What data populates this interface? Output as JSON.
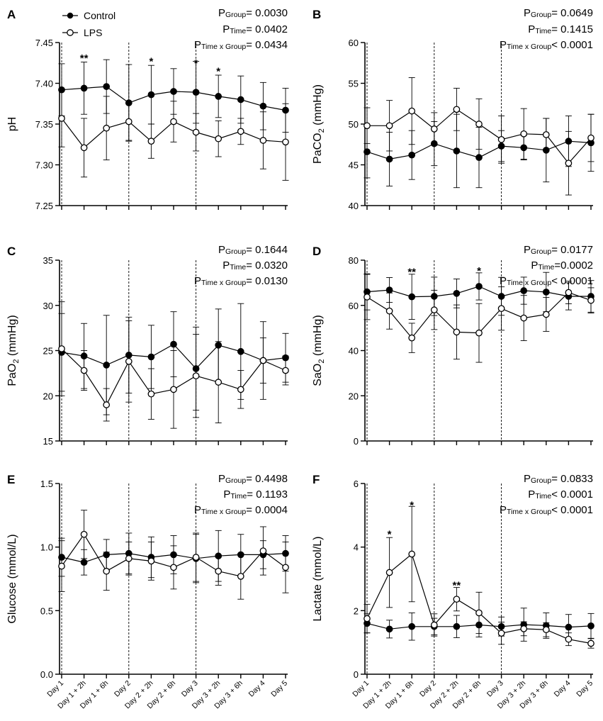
{
  "legend": {
    "control": "Control",
    "lps": "LPS"
  },
  "chart_data": [
    {
      "panel": "A",
      "type": "line",
      "ylabel": "pH",
      "ylabel_sub": "",
      "ylim": [
        7.25,
        7.45
      ],
      "yticks": [
        "7.25",
        "7.30",
        "7.35",
        "7.40",
        "7.45"
      ],
      "categories": [
        "Day 1",
        "Day 1 + 2h",
        "Day 1 + 6h",
        "Day 2",
        "Day 2 + 2h",
        "Day 2 + 6h",
        "Day 3",
        "Day 3 + 2h",
        "Day 3 + 6h",
        "Day 4",
        "Day 5"
      ],
      "vlines": [
        0,
        3,
        6
      ],
      "series": [
        {
          "name": "Control",
          "values": [
            7.392,
            7.394,
            7.396,
            7.376,
            7.386,
            7.39,
            7.389,
            7.384,
            7.38,
            7.372,
            7.367
          ],
          "errors": [
            0.032,
            0.032,
            0.033,
            0.047,
            0.036,
            0.028,
            0.038,
            0.026,
            0.029,
            0.029,
            0.027
          ]
        },
        {
          "name": "LPS",
          "values": [
            7.357,
            7.321,
            7.345,
            7.353,
            7.329,
            7.353,
            7.34,
            7.332,
            7.341,
            7.33,
            7.328
          ],
          "errors": [
            0.035,
            0.036,
            0.039,
            0.023,
            0.021,
            0.025,
            0.023,
            0.022,
            0.016,
            0.035,
            0.047
          ]
        }
      ],
      "stars": [
        {
          "x": 1,
          "label": "**",
          "v": 7.43
        },
        {
          "x": 4,
          "label": "*",
          "v": 7.426
        },
        {
          "x": 6,
          "label": "*",
          "v": 7.424
        },
        {
          "x": 7,
          "label": "*",
          "v": 7.414
        }
      ],
      "stats": [
        {
          "sub": "Group",
          "text": "= 0.0030"
        },
        {
          "sub": "Time",
          "text": "= 0.0402"
        },
        {
          "sub": "Time x Group",
          "text": "= 0.0434"
        }
      ]
    },
    {
      "panel": "B",
      "type": "line",
      "ylabel": "PaCO",
      "ylabel_sub": "2",
      "ylabel_unit": " (mmHg)",
      "ylim": [
        40,
        60
      ],
      "yticks": [
        "40",
        "45",
        "50",
        "55",
        "60"
      ],
      "categories": [
        "Day 1",
        "Day 1 + 2h",
        "Day 1 + 6h",
        "Day 2",
        "Day 2 + 2h",
        "Day 2 + 6h",
        "Day 3",
        "Day 3 + 2h",
        "Day 3 + 6h",
        "Day 4",
        "Day 5"
      ],
      "vlines": [
        0,
        3,
        6
      ],
      "series": [
        {
          "name": "Control",
          "values": [
            46.6,
            45.7,
            46.2,
            47.6,
            46.7,
            45.9,
            47.3,
            47.1,
            46.8,
            47.9,
            47.7
          ],
          "errors": [
            3.2,
            3.3,
            3.0,
            2.7,
            4.5,
            3.7,
            1.9,
            1.5,
            3.9,
            3.1,
            3.5
          ]
        },
        {
          "name": "LPS",
          "values": [
            49.8,
            49.8,
            51.6,
            49.4,
            51.8,
            50.0,
            48.1,
            48.8,
            48.7,
            45.2,
            48.3
          ],
          "errors": [
            2.2,
            3.1,
            4.1,
            2.0,
            2.6,
            3.1,
            2.9,
            3.1,
            2.0,
            3.9,
            2.9
          ]
        }
      ],
      "stars": [],
      "stats": [
        {
          "sub": "Group",
          "text": "= 0.0649"
        },
        {
          "sub": "Time",
          "text": "= 0.1415"
        },
        {
          "sub": "Time x Group",
          "text": "< 0.0001"
        }
      ]
    },
    {
      "panel": "C",
      "type": "line",
      "ylabel": "PaO",
      "ylabel_sub": "2",
      "ylabel_unit": " (mmHg)",
      "ylim": [
        15,
        35
      ],
      "yticks": [
        "15",
        "20",
        "25",
        "30",
        "35"
      ],
      "categories": [
        "Day 1",
        "Day 1 + 2h",
        "Day 1 + 6h",
        "Day 2",
        "Day 2 + 2h",
        "Day 2 + 6h",
        "Day 3",
        "Day 3 + 2h",
        "Day 3 + 6h",
        "Day 4",
        "Day 5"
      ],
      "vlines": [
        0,
        3,
        6
      ],
      "series": [
        {
          "name": "Control",
          "values": [
            24.8,
            24.4,
            23.4,
            24.5,
            24.3,
            25.7,
            23.0,
            25.6,
            24.9,
            23.9,
            24.2
          ],
          "errors": [
            4.3,
            3.6,
            5.5,
            4.2,
            3.5,
            3.6,
            4.6,
            4.0,
            5.3,
            4.3,
            2.7
          ]
        },
        {
          "name": "LPS",
          "values": [
            25.2,
            22.8,
            19.0,
            23.8,
            20.2,
            20.7,
            22.2,
            21.5,
            20.7,
            23.9,
            22.8
          ],
          "errors": [
            5.2,
            2.2,
            1.8,
            4.5,
            2.8,
            4.3,
            4.6,
            4.5,
            2.1,
            2.5,
            1.6
          ]
        }
      ],
      "stars": [],
      "stats": [
        {
          "sub": "Group",
          "text": "= 0.1644"
        },
        {
          "sub": "Time",
          "text": "= 0.0320"
        },
        {
          "sub": "Time x Group",
          "text": "= 0.0130"
        }
      ]
    },
    {
      "panel": "D",
      "type": "line",
      "ylabel": "SaO",
      "ylabel_sub": "2",
      "ylabel_unit": " (mmHg)",
      "ylim": [
        0,
        80
      ],
      "yticks": [
        "0",
        "20",
        "40",
        "60",
        "80"
      ],
      "categories": [
        "Day 1",
        "Day 1 + 2h",
        "Day 1 + 6h",
        "Day 2",
        "Day 2 + 2h",
        "Day 2 + 6h",
        "Day 3",
        "Day 3 + 2h",
        "Day 3 + 6h",
        "Day 4",
        "Day 5"
      ],
      "vlines": [
        0,
        3,
        6
      ],
      "series": [
        {
          "name": "Control",
          "values": [
            66,
            66.8,
            63.8,
            64,
            65.3,
            68.4,
            64,
            66.5,
            65.9,
            64,
            64
          ],
          "errors": [
            8,
            5.5,
            10,
            8.5,
            6.4,
            6,
            8.4,
            6,
            8.7,
            6,
            7
          ]
        },
        {
          "name": "LPS",
          "values": [
            63.7,
            57.5,
            45.6,
            58,
            48.2,
            47.8,
            58.6,
            54.4,
            56,
            65.7,
            62.2
          ],
          "errors": [
            10,
            8,
            6.5,
            8.7,
            12,
            13,
            9.6,
            10,
            7.5,
            5,
            5.6
          ]
        }
      ],
      "stars": [
        {
          "x": 2,
          "label": "**",
          "v": 74.5
        },
        {
          "x": 5,
          "label": "*",
          "v": 75.0
        }
      ],
      "stats": [
        {
          "sub": "Group",
          "text": "= 0.0177"
        },
        {
          "sub": "Time",
          "text": "=0.0002"
        },
        {
          "sub": "Time x Group",
          "text": "< 0.0001"
        }
      ]
    },
    {
      "panel": "E",
      "type": "line",
      "ylabel": "Glucose (mmol/L)",
      "ylabel_sub": "",
      "ylim": [
        0,
        1.5
      ],
      "yticks": [
        "0.0",
        "0.5",
        "1.0",
        "1.5"
      ],
      "categories": [
        "Day 1",
        "Day 1 + 2h",
        "Day 1 + 6h",
        "Day 2",
        "Day 2 + 2h",
        "Day 2 + 6h",
        "Day 3",
        "Day 3 + 2h",
        "Day 3 + 6h",
        "Day 4",
        "Day 5"
      ],
      "vlines": [
        0,
        3,
        6
      ],
      "series": [
        {
          "name": "Control",
          "values": [
            0.92,
            0.88,
            0.94,
            0.95,
            0.92,
            0.94,
            0.91,
            0.93,
            0.94,
            0.94,
            0.95
          ],
          "errors": [
            0.15,
            0.1,
            0.12,
            0.16,
            0.16,
            0.15,
            0.19,
            0.2,
            0.16,
            0.11,
            0.14
          ]
        },
        {
          "name": "LPS",
          "values": [
            0.85,
            1.1,
            0.81,
            0.91,
            0.89,
            0.84,
            0.92,
            0.81,
            0.77,
            0.97,
            0.84
          ],
          "errors": [
            0.2,
            0.19,
            0.15,
            0.13,
            0.15,
            0.17,
            0.19,
            0.11,
            0.18,
            0.19,
            0.2
          ]
        }
      ],
      "stars": [],
      "stats": [
        {
          "sub": "Group",
          "text": "= 0.4498"
        },
        {
          "sub": "Time",
          "text": "= 0.1193"
        },
        {
          "sub": "Time x Group",
          "text": "= 0.0004"
        }
      ]
    },
    {
      "panel": "F",
      "type": "line",
      "ylabel": "Lactate (mmol/L)",
      "ylabel_sub": "",
      "ylim": [
        0,
        6
      ],
      "yticks": [
        "0",
        "2",
        "4",
        "6"
      ],
      "categories": [
        "Day 1",
        "Day 1 + 2h",
        "Day 1 + 6h",
        "Day 2",
        "Day 2 + 2h",
        "Day 2 + 6h",
        "Day 3",
        "Day 3 + 2h",
        "Day 3 + 6h",
        "Day 4",
        "Day 5"
      ],
      "vlines": [
        0,
        3,
        6
      ],
      "series": [
        {
          "name": "Control",
          "values": [
            1.6,
            1.42,
            1.5,
            1.5,
            1.5,
            1.55,
            1.5,
            1.56,
            1.53,
            1.48,
            1.52
          ],
          "errors": [
            0.3,
            0.28,
            0.43,
            0.26,
            0.35,
            0.38,
            0.3,
            0.52,
            0.4,
            0.4,
            0.39
          ]
        },
        {
          "name": "LPS",
          "values": [
            1.75,
            3.2,
            3.78,
            1.55,
            2.36,
            1.93,
            1.29,
            1.43,
            1.4,
            1.1,
            0.97
          ],
          "errors": [
            0.45,
            1.1,
            1.5,
            0.35,
            0.37,
            0.65,
            0.35,
            0.22,
            0.22,
            0.2,
            0.15
          ]
        }
      ],
      "stars": [
        {
          "x": 1,
          "label": "*",
          "v": 4.38
        },
        {
          "x": 2,
          "label": "*",
          "v": 5.3
        },
        {
          "x": 4,
          "label": "**",
          "v": 2.78
        }
      ],
      "stats": [
        {
          "sub": "Group",
          "text": "= 0.0833"
        },
        {
          "sub": "Time",
          "text": "< 0.0001"
        },
        {
          "sub": "Time x Group",
          "text": "< 0.0001"
        }
      ]
    }
  ]
}
